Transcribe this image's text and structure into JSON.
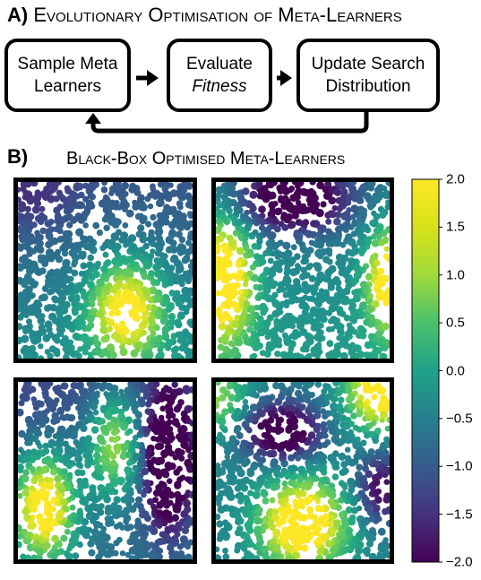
{
  "section_a": {
    "letter": "A)",
    "title": "Evolutionary Optimisation of Meta-Learners",
    "boxes": [
      {
        "lines": [
          "Sample Meta",
          "Learners"
        ]
      },
      {
        "lines": [
          "Evaluate",
          "Fitness"
        ]
      },
      {
        "lines": [
          "Update Search",
          "Distribution"
        ]
      }
    ]
  },
  "section_b": {
    "letter": "B)",
    "title": "Black-Box Optimised Meta-Learners"
  },
  "colors": {
    "viridis_low": "#440154",
    "viridis_mid": "#21918c",
    "viridis_high": "#fde725"
  },
  "chart_data": {
    "type": "heatmap",
    "colormap": "viridis",
    "colorbar": {
      "range": [
        -2.0,
        2.0
      ],
      "tick_values": [
        2.0,
        1.5,
        1.0,
        0.5,
        0.0,
        -0.5,
        -1.0,
        -1.5,
        -2.0
      ],
      "tick_labels": [
        "2.0",
        "1.5",
        "1.0",
        "0.5",
        "0.0",
        "−0.5",
        "−1.0",
        "−1.5",
        "−2.0"
      ]
    },
    "panels": [
      {
        "position": "top-left",
        "peak": {
          "x": 0.62,
          "y": 0.28,
          "value": 2.0
        },
        "trough": {
          "x": 0.05,
          "y": 0.95,
          "value": -1.4
        }
      },
      {
        "position": "top-right",
        "peak": {
          "x": 0.05,
          "y": 0.45,
          "value": 1.8
        },
        "trough": {
          "x": 0.45,
          "y": 0.9,
          "value": -2.0
        }
      },
      {
        "position": "bottom-left",
        "peak": {
          "x": 0.15,
          "y": 0.3,
          "value": 1.9
        },
        "trough": {
          "x": 0.85,
          "y": 0.55,
          "value": -2.0
        }
      },
      {
        "position": "bottom-right",
        "peak": {
          "x": 0.5,
          "y": 0.2,
          "value": 2.0
        },
        "trough": {
          "x": 0.35,
          "y": 0.7,
          "value": -1.8
        }
      }
    ]
  }
}
